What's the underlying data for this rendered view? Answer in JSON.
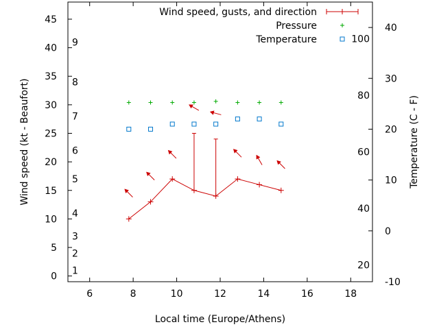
{
  "chart_data": {
    "type": "line",
    "xlabel": "Local time (Europe/Athens)",
    "ylabel_left": "Wind speed (kt - Beaufort)",
    "ylabel_right": "Temperature (C - F)",
    "xlim": [
      5,
      19
    ],
    "ylim_left": [
      -1,
      48
    ],
    "ylim_right": [
      -10,
      45
    ],
    "x_ticks": [
      6,
      8,
      10,
      12,
      14,
      16,
      18
    ],
    "y_ticks_left": [
      0,
      5,
      10,
      15,
      20,
      25,
      30,
      35,
      40,
      45
    ],
    "y_ticks_right": [
      -10,
      0,
      10,
      20,
      30,
      40
    ],
    "beaufort_labels": [
      {
        "label": "1",
        "kt": 1
      },
      {
        "label": "2",
        "kt": 4
      },
      {
        "label": "3",
        "kt": 7
      },
      {
        "label": "4",
        "kt": 11
      },
      {
        "label": "5",
        "kt": 17
      },
      {
        "label": "6",
        "kt": 22
      },
      {
        "label": "7",
        "kt": 28
      },
      {
        "label": "8",
        "kt": 34
      },
      {
        "label": "9",
        "kt": 41
      }
    ],
    "fahrenheit_labels": [
      {
        "label": "20",
        "f": 20
      },
      {
        "label": "40",
        "f": 40
      },
      {
        "label": "60",
        "f": 60
      },
      {
        "label": "80",
        "f": 80
      },
      {
        "label": "100",
        "f": 100
      }
    ],
    "legend": [
      {
        "name": "Wind speed, gusts, and direction",
        "marker": "errorbar"
      },
      {
        "name": "Pressure",
        "marker": "plus"
      },
      {
        "name": "Temperature",
        "marker": "square"
      }
    ],
    "series": [
      {
        "name": "Wind speed",
        "x": [
          7.8,
          8.8,
          9.8,
          10.8,
          11.8,
          12.8,
          13.8,
          14.8
        ],
        "values": [
          10,
          13,
          17,
          15,
          14,
          17,
          16,
          15
        ]
      },
      {
        "name": "Gusts",
        "x": [
          10.8,
          11.8
        ],
        "values": [
          25,
          24
        ]
      },
      {
        "name": "Pressure",
        "x": [
          7.8,
          8.8,
          9.8,
          10.8,
          11.8,
          12.8,
          13.8,
          14.8
        ],
        "values": [
          30.4,
          30.4,
          30.4,
          30.4,
          30.6,
          30.4,
          30.4,
          30.4
        ]
      },
      {
        "name": "Temperature",
        "x": [
          7.8,
          8.8,
          9.8,
          10.8,
          11.8,
          12.8,
          13.8,
          14.8
        ],
        "values": [
          20,
          20,
          21,
          21,
          21,
          22,
          22,
          21
        ]
      },
      {
        "name": "Direction",
        "x": [
          7.8,
          8.8,
          9.8,
          10.8,
          11.8,
          12.8,
          13.8,
          14.8
        ],
        "at_kt": [
          14.5,
          17.5,
          21.3,
          29.5,
          28.5,
          21.5,
          20.3,
          19.5
        ],
        "arrow_angle_deg": [
          225,
          225,
          225,
          210,
          195,
          225,
          240,
          225
        ]
      }
    ]
  },
  "colors": {
    "wind": "#cc0000",
    "pressure": "#00aa00",
    "temperature": "#0077cc"
  }
}
